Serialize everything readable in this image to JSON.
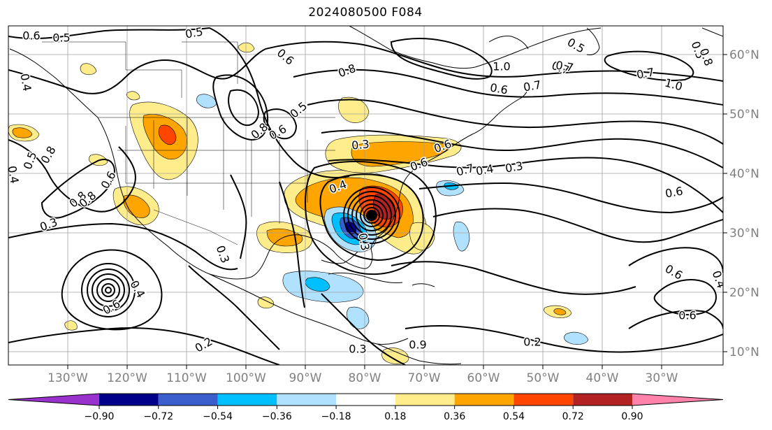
{
  "title": "2024080500 F084",
  "longitude_labels": [
    "130°W",
    "120°W",
    "110°W",
    "100°W",
    "90°W",
    "80°W",
    "70°W",
    "60°W",
    "50°W",
    "40°W",
    "30°W"
  ],
  "latitude_labels": [
    "60°N",
    "50°N",
    "40°N",
    "30°N",
    "20°N",
    "10°N"
  ],
  "colorbar": {
    "colors": [
      "#9932cc",
      "#00008b",
      "#3a5fcd",
      "#00bfff",
      "#b0e2ff",
      "#ffffff",
      "#ffec8b",
      "#ffa500",
      "#ff4500",
      "#b22222",
      "#ff82ab"
    ],
    "tick_labels": [
      "−0.90",
      "−0.72",
      "−0.54",
      "−0.36",
      "−0.18",
      "0.18",
      "0.36",
      "0.54",
      "0.72",
      "0.90"
    ]
  },
  "contour_labels": [
    "0.6",
    "0.5",
    "0.5",
    "0.4",
    "0.6",
    "0.8",
    "0.5",
    "0.7",
    "0.5",
    "1.0",
    "0.7",
    "0.6",
    "0.7",
    "1.0",
    "0.8",
    "0.8",
    "0.5",
    "0.4",
    "0.8",
    "0.6",
    "0.3",
    "0.5",
    "0.6",
    "0.3",
    "0.4",
    "0.6",
    "0.4",
    "0.3",
    "0.3",
    "0.4",
    "0.6",
    "0.3",
    "0.2",
    "0.2",
    "0.3",
    "0.9",
    "0.6",
    "0.6",
    "0.4",
    "0.6",
    "0.8",
    "0.8",
    "0.7",
    "0.6",
    "0.7"
  ],
  "map_features": {
    "cyclone_center": "closed-low-off-southeast-us",
    "shading_variable": "anomaly",
    "contour_variable": "isolines"
  }
}
